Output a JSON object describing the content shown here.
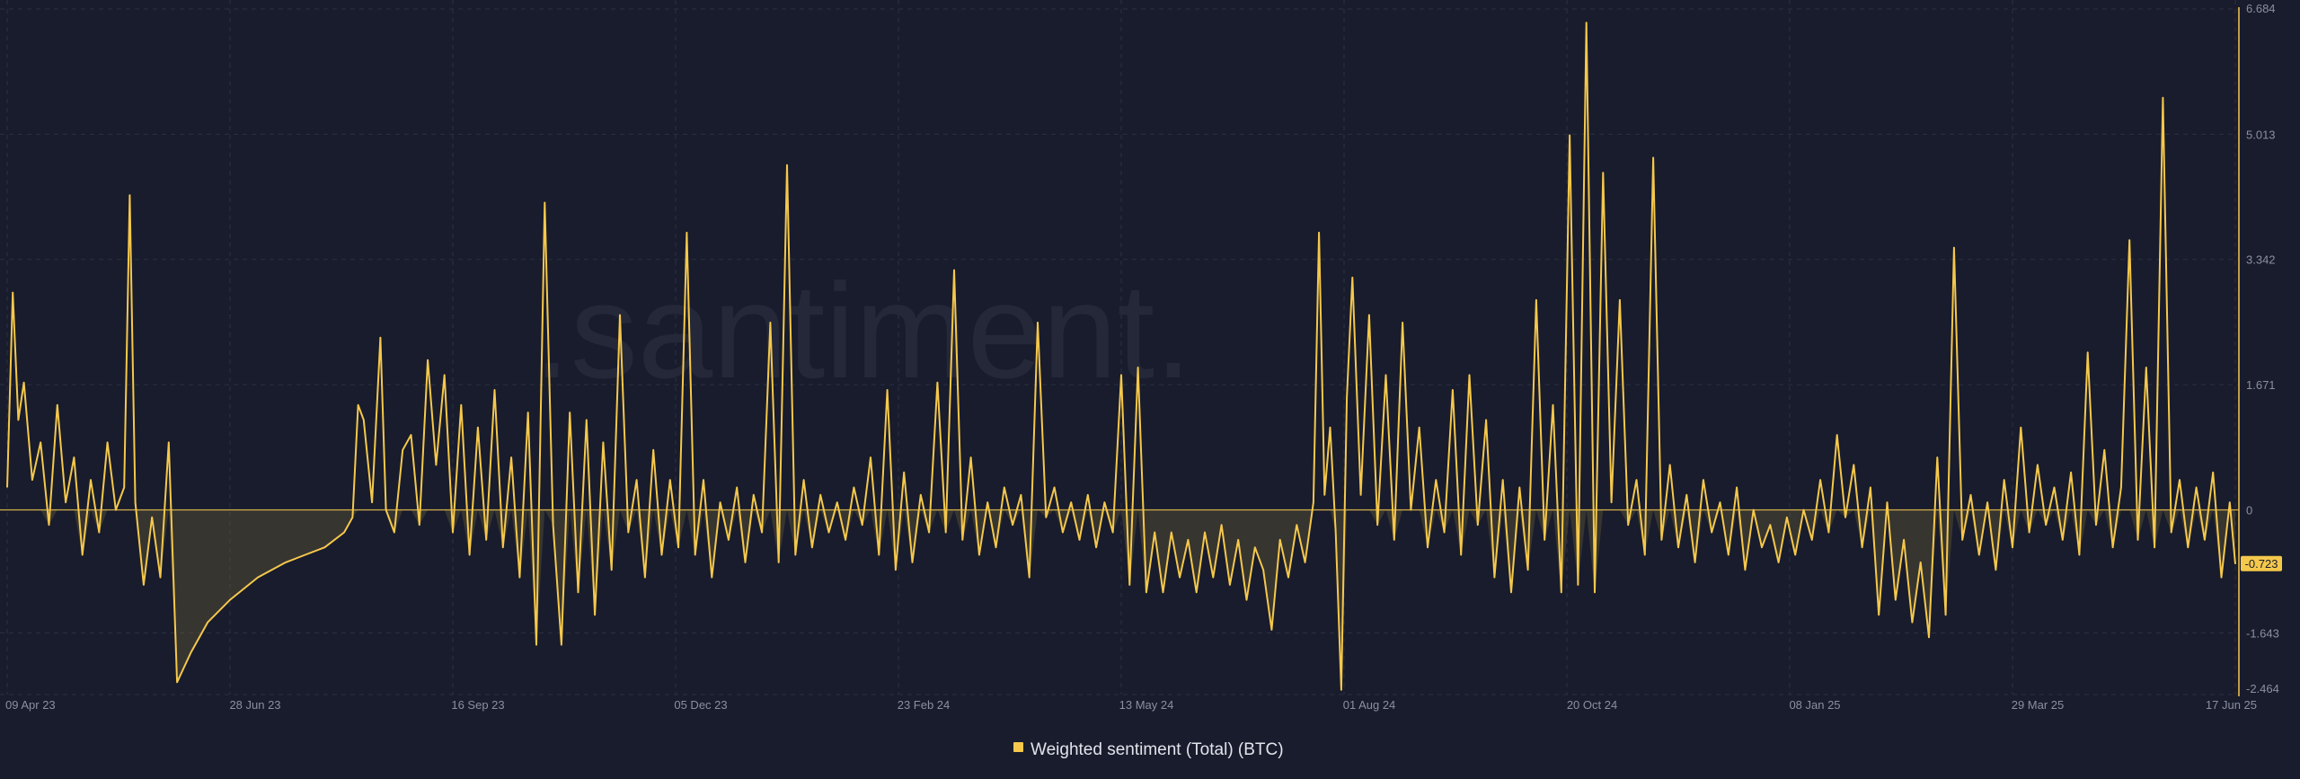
{
  "watermark": ".santiment.",
  "colors": {
    "background": "#181c2c",
    "line": "#f5c84c",
    "grid": "#2b3042",
    "zero_line": "#d6b14a"
  },
  "chart_data": {
    "type": "line",
    "title": "",
    "xlabel": "",
    "ylabel": "",
    "x_ticks": [
      "09 Apr 23",
      "28 Jun 23",
      "16 Sep 23",
      "05 Dec 23",
      "23 Feb 24",
      "13 May 24",
      "01 Aug 24",
      "20 Oct 24",
      "08 Jan 25",
      "29 Mar 25",
      "17 Jun 25"
    ],
    "y_ticks": [
      "6.684",
      "5.013",
      "3.342",
      "1.671",
      "0",
      "-1.643",
      "-2.464"
    ],
    "ylim": [
      -2.464,
      6.684
    ],
    "x_range": [
      "2023-04-09",
      "2025-06-17"
    ],
    "grid": true,
    "legend_position": "bottom-center",
    "series": [
      {
        "name": "Weighted sentiment (Total) (BTC)",
        "color": "#f5c84c",
        "last_value": -0.723,
        "points": [
          [
            "2023-04-09",
            0.3
          ],
          [
            "2023-04-11",
            2.9
          ],
          [
            "2023-04-13",
            1.2
          ],
          [
            "2023-04-15",
            1.7
          ],
          [
            "2023-04-18",
            0.4
          ],
          [
            "2023-04-21",
            0.9
          ],
          [
            "2023-04-24",
            -0.2
          ],
          [
            "2023-04-27",
            1.4
          ],
          [
            "2023-04-30",
            0.1
          ],
          [
            "2023-05-03",
            0.7
          ],
          [
            "2023-05-06",
            -0.6
          ],
          [
            "2023-05-09",
            0.4
          ],
          [
            "2023-05-12",
            -0.3
          ],
          [
            "2023-05-15",
            0.9
          ],
          [
            "2023-05-18",
            0.0
          ],
          [
            "2023-05-21",
            0.3
          ],
          [
            "2023-05-23",
            4.2
          ],
          [
            "2023-05-25",
            0.1
          ],
          [
            "2023-05-28",
            -1.0
          ],
          [
            "2023-05-31",
            -0.1
          ],
          [
            "2023-06-03",
            -0.9
          ],
          [
            "2023-06-06",
            0.9
          ],
          [
            "2023-06-09",
            -2.3
          ],
          [
            "2023-06-14",
            -1.9
          ],
          [
            "2023-06-20",
            -1.5
          ],
          [
            "2023-06-28",
            -1.2
          ],
          [
            "2023-07-08",
            -0.9
          ],
          [
            "2023-07-18",
            -0.7
          ],
          [
            "2023-07-25",
            -0.6
          ],
          [
            "2023-08-01",
            -0.5
          ],
          [
            "2023-08-08",
            -0.3
          ],
          [
            "2023-08-11",
            -0.1
          ],
          [
            "2023-08-13",
            1.4
          ],
          [
            "2023-08-15",
            1.2
          ],
          [
            "2023-08-18",
            0.1
          ],
          [
            "2023-08-21",
            2.3
          ],
          [
            "2023-08-23",
            0.0
          ],
          [
            "2023-08-26",
            -0.3
          ],
          [
            "2023-08-29",
            0.8
          ],
          [
            "2023-09-01",
            1.0
          ],
          [
            "2023-09-04",
            -0.2
          ],
          [
            "2023-09-07",
            2.0
          ],
          [
            "2023-09-10",
            0.6
          ],
          [
            "2023-09-13",
            1.8
          ],
          [
            "2023-09-16",
            -0.3
          ],
          [
            "2023-09-19",
            1.4
          ],
          [
            "2023-09-22",
            -0.6
          ],
          [
            "2023-09-25",
            1.1
          ],
          [
            "2023-09-28",
            -0.4
          ],
          [
            "2023-10-01",
            1.6
          ],
          [
            "2023-10-04",
            -0.5
          ],
          [
            "2023-10-07",
            0.7
          ],
          [
            "2023-10-10",
            -0.9
          ],
          [
            "2023-10-13",
            1.3
          ],
          [
            "2023-10-16",
            -1.8
          ],
          [
            "2023-10-19",
            4.1
          ],
          [
            "2023-10-22",
            -0.2
          ],
          [
            "2023-10-25",
            -1.8
          ],
          [
            "2023-10-28",
            1.3
          ],
          [
            "2023-10-31",
            -1.1
          ],
          [
            "2023-11-03",
            1.2
          ],
          [
            "2023-11-06",
            -1.4
          ],
          [
            "2023-11-09",
            0.9
          ],
          [
            "2023-11-12",
            -0.8
          ],
          [
            "2023-11-15",
            2.6
          ],
          [
            "2023-11-18",
            -0.3
          ],
          [
            "2023-11-21",
            0.4
          ],
          [
            "2023-11-24",
            -0.9
          ],
          [
            "2023-11-27",
            0.8
          ],
          [
            "2023-11-30",
            -0.6
          ],
          [
            "2023-12-03",
            0.4
          ],
          [
            "2023-12-06",
            -0.5
          ],
          [
            "2023-12-09",
            3.7
          ],
          [
            "2023-12-12",
            -0.6
          ],
          [
            "2023-12-15",
            0.4
          ],
          [
            "2023-12-18",
            -0.9
          ],
          [
            "2023-12-21",
            0.1
          ],
          [
            "2023-12-24",
            -0.4
          ],
          [
            "2023-12-27",
            0.3
          ],
          [
            "2023-12-30",
            -0.7
          ],
          [
            "2024-01-02",
            0.2
          ],
          [
            "2024-01-05",
            -0.3
          ],
          [
            "2024-01-08",
            2.5
          ],
          [
            "2024-01-11",
            -0.7
          ],
          [
            "2024-01-14",
            4.6
          ],
          [
            "2024-01-17",
            -0.6
          ],
          [
            "2024-01-20",
            0.4
          ],
          [
            "2024-01-23",
            -0.5
          ],
          [
            "2024-01-26",
            0.2
          ],
          [
            "2024-01-29",
            -0.3
          ],
          [
            "2024-02-01",
            0.1
          ],
          [
            "2024-02-04",
            -0.4
          ],
          [
            "2024-02-07",
            0.3
          ],
          [
            "2024-02-10",
            -0.2
          ],
          [
            "2024-02-13",
            0.7
          ],
          [
            "2024-02-16",
            -0.6
          ],
          [
            "2024-02-19",
            1.6
          ],
          [
            "2024-02-22",
            -0.8
          ],
          [
            "2024-02-25",
            0.5
          ],
          [
            "2024-02-28",
            -0.7
          ],
          [
            "2024-03-02",
            0.2
          ],
          [
            "2024-03-05",
            -0.3
          ],
          [
            "2024-03-08",
            1.7
          ],
          [
            "2024-03-11",
            -0.3
          ],
          [
            "2024-03-14",
            3.2
          ],
          [
            "2024-03-17",
            -0.4
          ],
          [
            "2024-03-20",
            0.7
          ],
          [
            "2024-03-23",
            -0.6
          ],
          [
            "2024-03-26",
            0.1
          ],
          [
            "2024-03-29",
            -0.5
          ],
          [
            "2024-04-01",
            0.3
          ],
          [
            "2024-04-04",
            -0.2
          ],
          [
            "2024-04-07",
            0.2
          ],
          [
            "2024-04-10",
            -0.9
          ],
          [
            "2024-04-13",
            2.5
          ],
          [
            "2024-04-16",
            -0.1
          ],
          [
            "2024-04-19",
            0.3
          ],
          [
            "2024-04-22",
            -0.3
          ],
          [
            "2024-04-25",
            0.1
          ],
          [
            "2024-04-28",
            -0.4
          ],
          [
            "2024-05-01",
            0.2
          ],
          [
            "2024-05-04",
            -0.5
          ],
          [
            "2024-05-07",
            0.1
          ],
          [
            "2024-05-10",
            -0.3
          ],
          [
            "2024-05-13",
            1.8
          ],
          [
            "2024-05-16",
            -1.0
          ],
          [
            "2024-05-19",
            1.9
          ],
          [
            "2024-05-22",
            -1.1
          ],
          [
            "2024-05-25",
            -0.3
          ],
          [
            "2024-05-28",
            -1.1
          ],
          [
            "2024-05-31",
            -0.3
          ],
          [
            "2024-06-03",
            -0.9
          ],
          [
            "2024-06-06",
            -0.4
          ],
          [
            "2024-06-09",
            -1.1
          ],
          [
            "2024-06-12",
            -0.3
          ],
          [
            "2024-06-15",
            -0.9
          ],
          [
            "2024-06-18",
            -0.2
          ],
          [
            "2024-06-21",
            -1.0
          ],
          [
            "2024-06-24",
            -0.4
          ],
          [
            "2024-06-27",
            -1.2
          ],
          [
            "2024-06-30",
            -0.5
          ],
          [
            "2024-07-03",
            -0.8
          ],
          [
            "2024-07-06",
            -1.6
          ],
          [
            "2024-07-09",
            -0.4
          ],
          [
            "2024-07-12",
            -0.9
          ],
          [
            "2024-07-15",
            -0.2
          ],
          [
            "2024-07-18",
            -0.7
          ],
          [
            "2024-07-21",
            0.1
          ],
          [
            "2024-07-23",
            3.7
          ],
          [
            "2024-07-25",
            0.2
          ],
          [
            "2024-07-27",
            1.1
          ],
          [
            "2024-07-29",
            -0.3
          ],
          [
            "2024-07-31",
            -2.4
          ],
          [
            "2024-08-02",
            1.5
          ],
          [
            "2024-08-04",
            3.1
          ],
          [
            "2024-08-07",
            0.2
          ],
          [
            "2024-08-10",
            2.6
          ],
          [
            "2024-08-13",
            -0.2
          ],
          [
            "2024-08-16",
            1.8
          ],
          [
            "2024-08-19",
            -0.4
          ],
          [
            "2024-08-22",
            2.5
          ],
          [
            "2024-08-25",
            0.0
          ],
          [
            "2024-08-28",
            1.1
          ],
          [
            "2024-08-31",
            -0.5
          ],
          [
            "2024-09-03",
            0.4
          ],
          [
            "2024-09-06",
            -0.3
          ],
          [
            "2024-09-09",
            1.6
          ],
          [
            "2024-09-12",
            -0.6
          ],
          [
            "2024-09-15",
            1.8
          ],
          [
            "2024-09-18",
            -0.2
          ],
          [
            "2024-09-21",
            1.2
          ],
          [
            "2024-09-24",
            -0.9
          ],
          [
            "2024-09-27",
            0.4
          ],
          [
            "2024-09-30",
            -1.1
          ],
          [
            "2024-10-03",
            0.3
          ],
          [
            "2024-10-06",
            -0.8
          ],
          [
            "2024-10-09",
            2.8
          ],
          [
            "2024-10-12",
            -0.4
          ],
          [
            "2024-10-15",
            1.4
          ],
          [
            "2024-10-18",
            -1.1
          ],
          [
            "2024-10-21",
            5.0
          ],
          [
            "2024-10-24",
            -1.0
          ],
          [
            "2024-10-27",
            6.5
          ],
          [
            "2024-10-30",
            -1.1
          ],
          [
            "2024-11-02",
            4.5
          ],
          [
            "2024-11-05",
            0.1
          ],
          [
            "2024-11-08",
            2.8
          ],
          [
            "2024-11-11",
            -0.2
          ],
          [
            "2024-11-14",
            0.4
          ],
          [
            "2024-11-17",
            -0.6
          ],
          [
            "2024-11-20",
            4.7
          ],
          [
            "2024-11-23",
            -0.4
          ],
          [
            "2024-11-26",
            0.6
          ],
          [
            "2024-11-29",
            -0.5
          ],
          [
            "2024-12-02",
            0.2
          ],
          [
            "2024-12-05",
            -0.7
          ],
          [
            "2024-12-08",
            0.4
          ],
          [
            "2024-12-11",
            -0.3
          ],
          [
            "2024-12-14",
            0.1
          ],
          [
            "2024-12-17",
            -0.6
          ],
          [
            "2024-12-20",
            0.3
          ],
          [
            "2024-12-23",
            -0.8
          ],
          [
            "2024-12-26",
            0.0
          ],
          [
            "2024-12-29",
            -0.5
          ],
          [
            "2025-01-01",
            -0.2
          ],
          [
            "2025-01-04",
            -0.7
          ],
          [
            "2025-01-07",
            -0.1
          ],
          [
            "2025-01-10",
            -0.6
          ],
          [
            "2025-01-13",
            0.0
          ],
          [
            "2025-01-16",
            -0.4
          ],
          [
            "2025-01-19",
            0.4
          ],
          [
            "2025-01-22",
            -0.3
          ],
          [
            "2025-01-25",
            1.0
          ],
          [
            "2025-01-28",
            -0.1
          ],
          [
            "2025-01-31",
            0.6
          ],
          [
            "2025-02-03",
            -0.5
          ],
          [
            "2025-02-06",
            0.3
          ],
          [
            "2025-02-09",
            -1.4
          ],
          [
            "2025-02-12",
            0.1
          ],
          [
            "2025-02-15",
            -1.2
          ],
          [
            "2025-02-18",
            -0.4
          ],
          [
            "2025-02-21",
            -1.5
          ],
          [
            "2025-02-24",
            -0.7
          ],
          [
            "2025-02-27",
            -1.7
          ],
          [
            "2025-03-02",
            0.7
          ],
          [
            "2025-03-05",
            -1.4
          ],
          [
            "2025-03-08",
            3.5
          ],
          [
            "2025-03-11",
            -0.4
          ],
          [
            "2025-03-14",
            0.2
          ],
          [
            "2025-03-17",
            -0.6
          ],
          [
            "2025-03-20",
            0.1
          ],
          [
            "2025-03-23",
            -0.8
          ],
          [
            "2025-03-26",
            0.4
          ],
          [
            "2025-03-29",
            -0.5
          ],
          [
            "2025-04-01",
            1.1
          ],
          [
            "2025-04-04",
            -0.3
          ],
          [
            "2025-04-07",
            0.6
          ],
          [
            "2025-04-10",
            -0.2
          ],
          [
            "2025-04-13",
            0.3
          ],
          [
            "2025-04-16",
            -0.4
          ],
          [
            "2025-04-19",
            0.5
          ],
          [
            "2025-04-22",
            -0.6
          ],
          [
            "2025-04-25",
            2.1
          ],
          [
            "2025-04-28",
            -0.2
          ],
          [
            "2025-05-01",
            0.8
          ],
          [
            "2025-05-04",
            -0.5
          ],
          [
            "2025-05-07",
            0.3
          ],
          [
            "2025-05-10",
            3.6
          ],
          [
            "2025-05-13",
            -0.4
          ],
          [
            "2025-05-16",
            1.9
          ],
          [
            "2025-05-19",
            -0.5
          ],
          [
            "2025-05-22",
            5.5
          ],
          [
            "2025-05-25",
            -0.3
          ],
          [
            "2025-05-28",
            0.4
          ],
          [
            "2025-05-31",
            -0.5
          ],
          [
            "2025-06-03",
            0.3
          ],
          [
            "2025-06-06",
            -0.4
          ],
          [
            "2025-06-09",
            0.5
          ],
          [
            "2025-06-12",
            -0.9
          ],
          [
            "2025-06-15",
            0.1
          ],
          [
            "2025-06-17",
            -0.723
          ]
        ]
      }
    ]
  }
}
